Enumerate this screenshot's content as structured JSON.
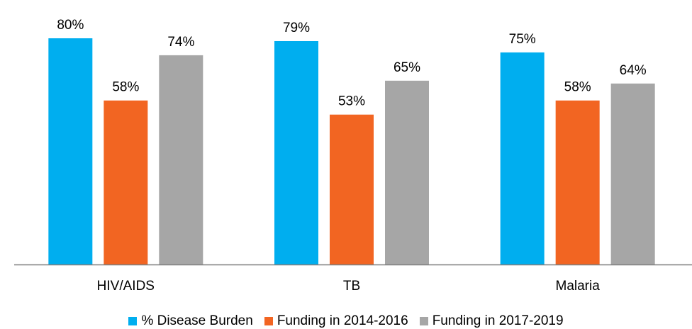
{
  "chart_data": {
    "type": "bar",
    "categories": [
      "HIV/AIDS",
      "TB",
      "Malaria"
    ],
    "series": [
      {
        "name": "% Disease Burden",
        "values": [
          80,
          79,
          75
        ],
        "labels": [
          "80%",
          "79%",
          "75%"
        ],
        "color": "#00AEEF"
      },
      {
        "name": "Funding in 2014-2016",
        "values": [
          58,
          53,
          58
        ],
        "labels": [
          "58%",
          "53%",
          "58%"
        ],
        "color": "#F26522"
      },
      {
        "name": "Funding in 2017-2019",
        "values": [
          74,
          65,
          64
        ],
        "labels": [
          "74%",
          "65%",
          "64%"
        ],
        "color": "#A6A6A6"
      }
    ],
    "ylim": [
      0,
      80
    ],
    "y_axis_visible": false,
    "grid": false,
    "legend_position": "bottom",
    "xaxis_color": "#7F7F7F"
  }
}
